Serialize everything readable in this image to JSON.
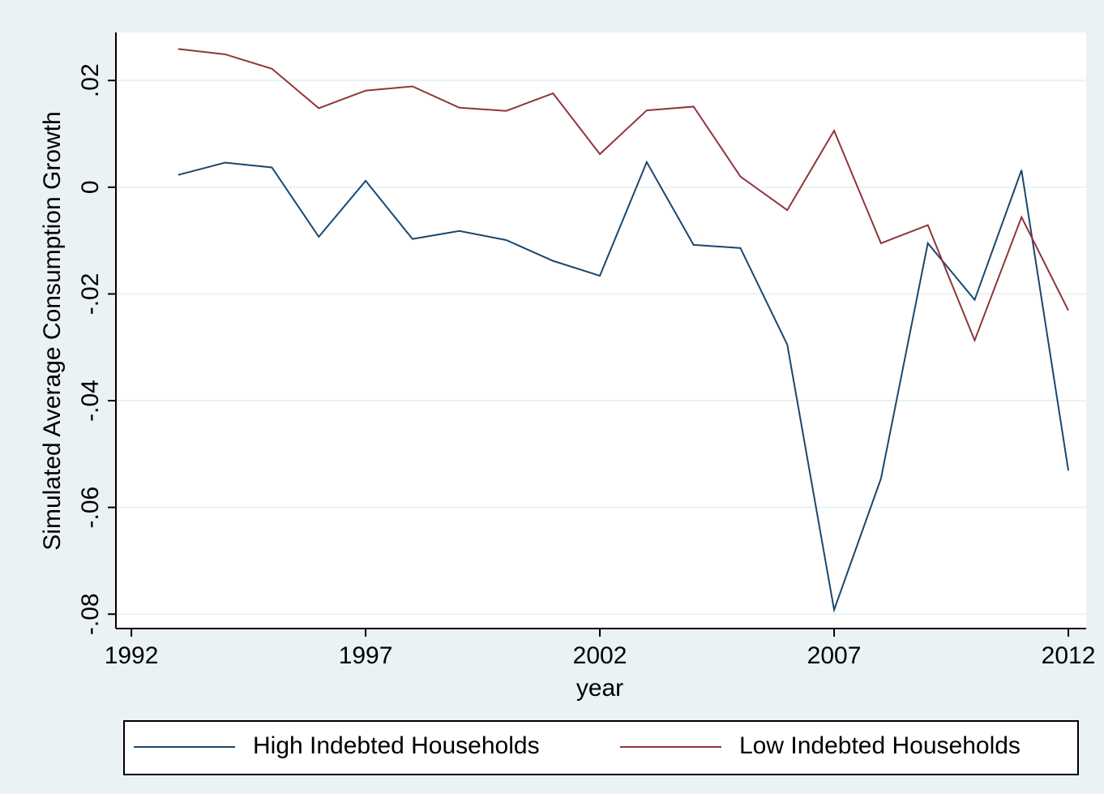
{
  "chart_data": {
    "type": "line",
    "x_label": "year",
    "y_label": "Simulated Average Consumption Growth",
    "x": [
      1993,
      1994,
      1995,
      1996,
      1997,
      1998,
      1999,
      2000,
      2001,
      2002,
      2003,
      2004,
      2005,
      2006,
      2007,
      2008,
      2009,
      2010,
      2011,
      2012
    ],
    "series": [
      {
        "name": "High Indebted Households",
        "color": "#1a476f",
        "values": [
          0.0023,
          0.0046,
          0.0037,
          -0.0093,
          0.0012,
          -0.0097,
          -0.0082,
          -0.0099,
          -0.0138,
          -0.0166,
          0.0047,
          -0.0108,
          -0.0114,
          -0.0295,
          -0.0792,
          -0.0546,
          -0.0105,
          -0.0211,
          0.0032,
          -0.0531
        ]
      },
      {
        "name": "Low Indebted Households",
        "color": "#90353b",
        "values": [
          0.0259,
          0.0249,
          0.0222,
          0.0148,
          0.0181,
          0.0189,
          0.0149,
          0.0143,
          0.0176,
          0.0062,
          0.0144,
          0.0151,
          0.002,
          -0.0043,
          0.0106,
          -0.0105,
          -0.0071,
          -0.0287,
          -0.0056,
          -0.0231
        ]
      }
    ],
    "xlim": [
      1991.67,
      2012.38
    ],
    "xticks": [
      1992,
      1997,
      2002,
      2007,
      2012
    ],
    "ylim": [
      -0.0827,
      0.029
    ],
    "yticks": [
      {
        "value": -0.08,
        "label": "-.08"
      },
      {
        "value": -0.06,
        "label": "-.06"
      },
      {
        "value": -0.04,
        "label": "-.04"
      },
      {
        "value": -0.02,
        "label": "-.02"
      },
      0,
      {
        "value": 0.02,
        "label": ".02"
      }
    ],
    "grid": true,
    "legend": "bottom"
  }
}
